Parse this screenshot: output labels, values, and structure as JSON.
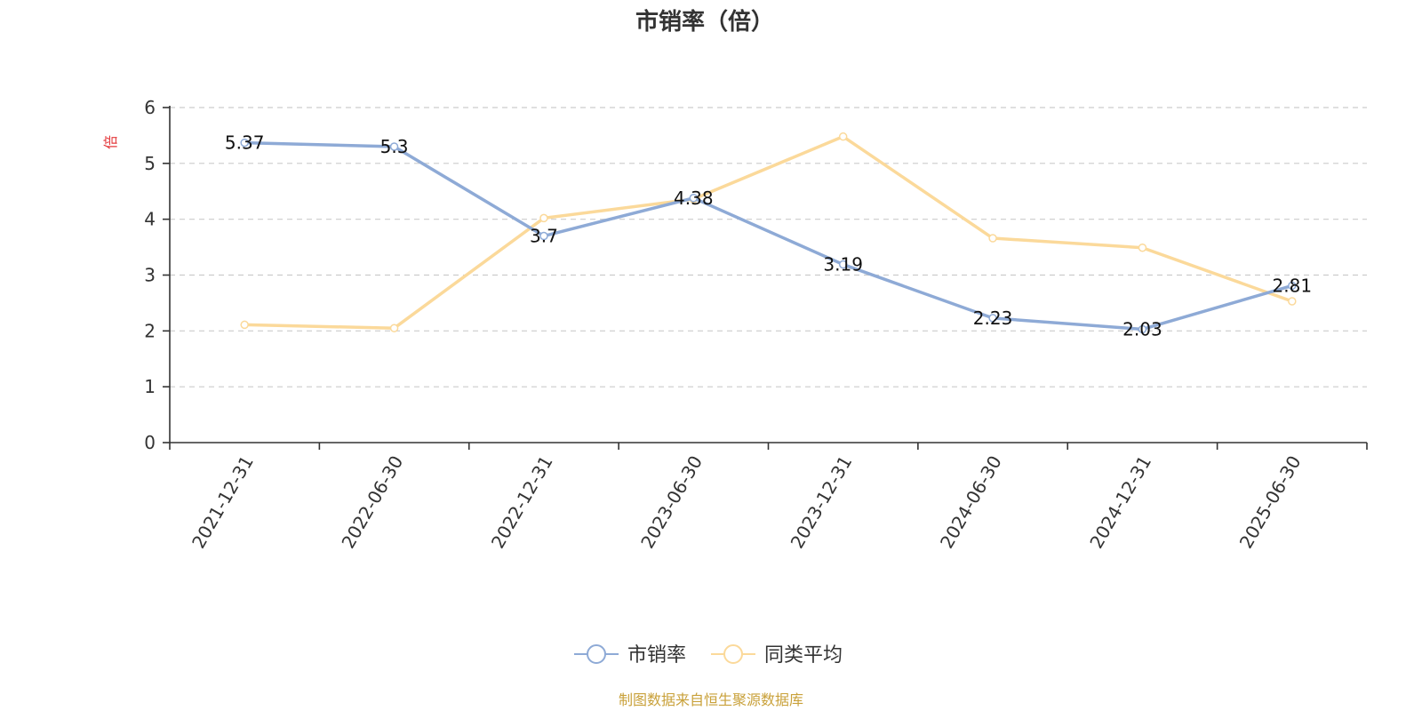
{
  "chart_data": {
    "type": "line",
    "title": "市销率（倍）",
    "ylabel": "倍",
    "xlabel": "",
    "categories": [
      "2021-12-31",
      "2022-06-30",
      "2022-12-31",
      "2023-06-30",
      "2023-12-31",
      "2024-06-30",
      "2024-12-31",
      "2025-06-30"
    ],
    "ylim": [
      0,
      6
    ],
    "yticks": [
      0,
      1,
      2,
      3,
      4,
      5,
      6
    ],
    "grid": true,
    "legend_position": "bottom",
    "series": [
      {
        "name": "市销率",
        "color": "#8eaad6",
        "values": [
          5.37,
          5.3,
          3.7,
          4.38,
          3.19,
          2.23,
          2.03,
          2.81
        ],
        "labels": [
          "5.37",
          "5.3",
          "3.7",
          "4.38",
          "3.19",
          "2.23",
          "2.03",
          "2.81"
        ]
      },
      {
        "name": "同类平均",
        "color": "#fbd99a",
        "values": [
          2.11,
          2.05,
          4.02,
          4.36,
          5.48,
          3.66,
          3.49,
          2.53
        ]
      }
    ]
  },
  "source_text": "制图数据来自恒生聚源数据库"
}
